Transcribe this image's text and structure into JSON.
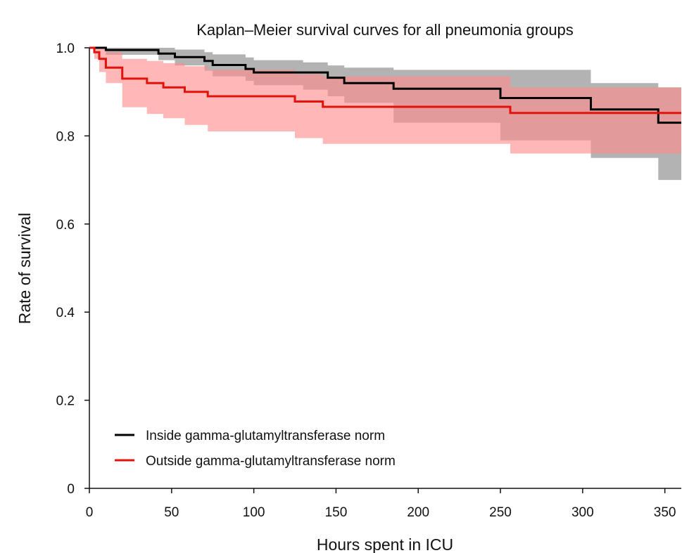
{
  "chart_data": {
    "type": "line",
    "subtype": "kaplan-meier step",
    "title": "Kaplan–Meier survival curves for all pneumonia groups",
    "xlabel": "Hours spent in ICU",
    "ylabel": "Rate of survival",
    "xlim": [
      0,
      360
    ],
    "ylim": [
      0,
      1.0
    ],
    "xticks": [
      0,
      50,
      100,
      150,
      200,
      250,
      300,
      350
    ],
    "yticks": [
      0,
      0.2,
      0.4,
      0.6,
      0.8,
      1.0
    ],
    "xtick_labels": [
      "0",
      "50",
      "100",
      "150",
      "200",
      "250",
      "300",
      "350"
    ],
    "ytick_labels": [
      "0",
      "0.2",
      "0.4",
      "0.6",
      "0.8",
      "1.0"
    ],
    "grid": false,
    "legend_position": "bottom-left",
    "series": [
      {
        "name": "Inside gamma-glutamyltransferase norm",
        "color": "#000000",
        "band_color": "#999999",
        "x": [
          0,
          10,
          42,
          52,
          70,
          75,
          95,
          100,
          130,
          145,
          155,
          185,
          250,
          305,
          346,
          360
        ],
        "y": [
          1.0,
          0.995,
          0.987,
          0.979,
          0.97,
          0.961,
          0.952,
          0.944,
          0.944,
          0.932,
          0.92,
          0.907,
          0.886,
          0.86,
          0.83,
          0.83
        ],
        "lower": [
          1.0,
          0.984,
          0.972,
          0.96,
          0.948,
          0.935,
          0.925,
          0.915,
          0.905,
          0.89,
          0.875,
          0.83,
          0.79,
          0.75,
          0.7,
          0.7
        ],
        "upper": [
          1.0,
          1.0,
          1.0,
          0.996,
          0.99,
          0.985,
          0.978,
          0.972,
          0.967,
          0.96,
          0.955,
          0.95,
          0.95,
          0.92,
          0.91,
          0.91
        ]
      },
      {
        "name": "Outside gamma-glutamyltransferase norm",
        "color": "#e3120b",
        "band_color": "#ff8a8a",
        "x": [
          0,
          3,
          6,
          10,
          20,
          35,
          45,
          58,
          72,
          125,
          142,
          256,
          360
        ],
        "y": [
          1.0,
          0.99,
          0.975,
          0.955,
          0.93,
          0.92,
          0.91,
          0.9,
          0.89,
          0.878,
          0.866,
          0.852,
          0.852
        ],
        "lower": [
          1.0,
          0.975,
          0.945,
          0.92,
          0.865,
          0.85,
          0.84,
          0.825,
          0.81,
          0.795,
          0.782,
          0.76,
          0.76
        ],
        "upper": [
          1.0,
          1.0,
          1.0,
          0.99,
          0.975,
          0.97,
          0.965,
          0.958,
          0.95,
          0.94,
          0.935,
          0.91,
          0.91
        ]
      }
    ]
  }
}
